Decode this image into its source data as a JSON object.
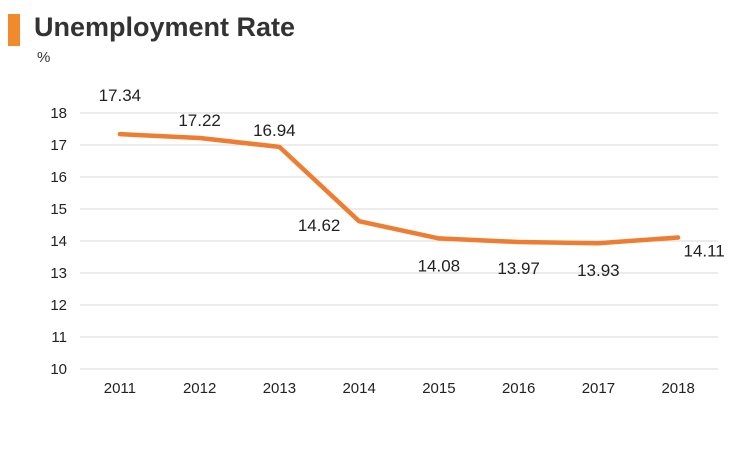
{
  "title": "Unemployment Rate",
  "unit": "%",
  "colors": {
    "accent": "#f08a2c",
    "line": "#ee7d31",
    "grid": "#d9d9d9"
  },
  "chart_data": {
    "type": "line",
    "title": "Unemployment Rate",
    "ylabel": "%",
    "xlabel": "",
    "categories": [
      "2011",
      "2012",
      "2013",
      "2014",
      "2015",
      "2016",
      "2017",
      "2018"
    ],
    "series": [
      {
        "values": [
          17.34,
          17.22,
          16.94,
          14.62,
          14.08,
          13.97,
          13.93,
          14.11
        ]
      }
    ],
    "value_labels": [
      "17.34",
      "17.22",
      "16.94",
      "14.62",
      "14.08",
      "13.97",
      "13.93",
      "14.11"
    ],
    "ylim": [
      10,
      18
    ],
    "yticks": [
      "10",
      "11",
      "12",
      "13",
      "14",
      "15",
      "16",
      "17",
      "18"
    ],
    "grid": "horizontal",
    "legend": "none"
  }
}
